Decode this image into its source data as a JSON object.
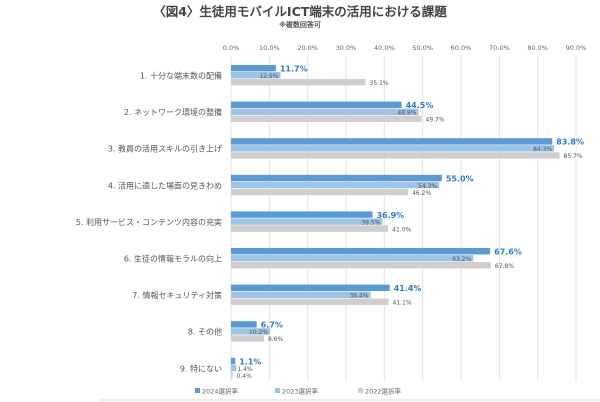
{
  "chart_data": {
    "type": "bar",
    "orientation": "horizontal",
    "title": "〈図4〉生徒用モバイルICT端末の活用における課題",
    "subtitle": "※複数回答可",
    "xlim": [
      0,
      90
    ],
    "xticks": [
      "0.0%",
      "10.0%",
      "20.0%",
      "30.0%",
      "40.0%",
      "50.0%",
      "60.0%",
      "70.0%",
      "80.0%",
      "90.0%"
    ],
    "xtick_values": [
      0,
      10,
      20,
      30,
      40,
      50,
      60,
      70,
      80,
      90
    ],
    "grid": true,
    "legend_position": "bottom",
    "categories": [
      "1. 十分な端末数の配備",
      "2. ネットワーク環境の整備",
      "3. 教員の活用スキルの引き上げ",
      "4. 活用に適した場面の見きわめ",
      "5. 利用サービス・コンテンツ内容の充実",
      "6. 生徒の情報モラルの向上",
      "7. 情報セキュリティ対策",
      "8. その他",
      "9. 特にない"
    ],
    "series": [
      {
        "name": "2024選択率",
        "color": "#5b9bd5",
        "values": [
          11.7,
          44.5,
          83.8,
          55.0,
          36.9,
          67.6,
          41.4,
          6.7,
          1.1
        ]
      },
      {
        "name": "2023選択率",
        "color": "#9dc3e6",
        "values": [
          12.9,
          48.9,
          84.3,
          54.3,
          39.5,
          63.2,
          36.4,
          10.2,
          1.4
        ]
      },
      {
        "name": "2022選択率",
        "color": "#d0cece",
        "values": [
          35.1,
          49.7,
          85.7,
          46.2,
          41.0,
          67.8,
          41.1,
          8.6,
          0.4
        ]
      }
    ]
  }
}
